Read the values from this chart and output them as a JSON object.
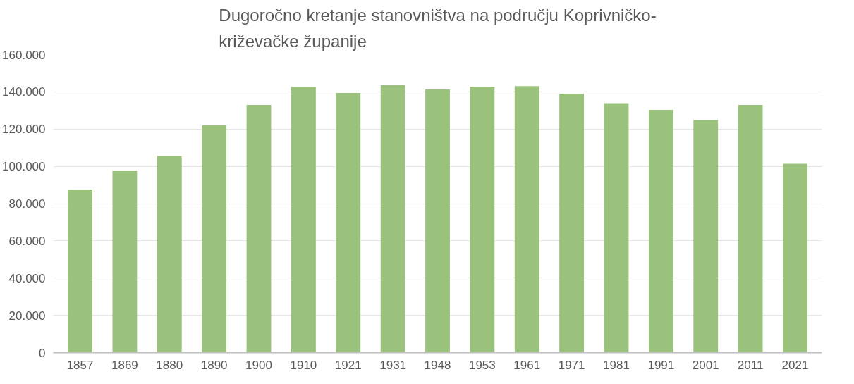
{
  "chart_data": {
    "type": "bar",
    "title": "Dugoročno kretanje stanovništva na području Koprivničko-\nkriževačke županije",
    "categories": [
      "1857",
      "1869",
      "1880",
      "1890",
      "1900",
      "1910",
      "1921",
      "1931",
      "1948",
      "1953",
      "1961",
      "1971",
      "1981",
      "1991",
      "2001",
      "2011",
      "2021"
    ],
    "values": [
      87600,
      97700,
      105500,
      122000,
      133000,
      142700,
      139400,
      143600,
      141300,
      142700,
      143100,
      139000,
      133900,
      130300,
      124800,
      133000,
      101400
    ],
    "color": "#9bc27c",
    "ylim": [
      0,
      160000
    ],
    "yticks": [
      0,
      {
        "value": 20000,
        "label": "20.000"
      },
      {
        "value": 40000,
        "label": "40.000"
      },
      {
        "value": 60000,
        "label": "60.000"
      },
      {
        "value": 80000,
        "label": "80.000"
      },
      {
        "value": 100000,
        "label": "100.000"
      },
      {
        "value": 120000,
        "label": "120.000"
      },
      {
        "value": 140000,
        "label": "140.000"
      },
      {
        "value": 160000,
        "label": "160.000"
      }
    ],
    "grid": "y"
  }
}
